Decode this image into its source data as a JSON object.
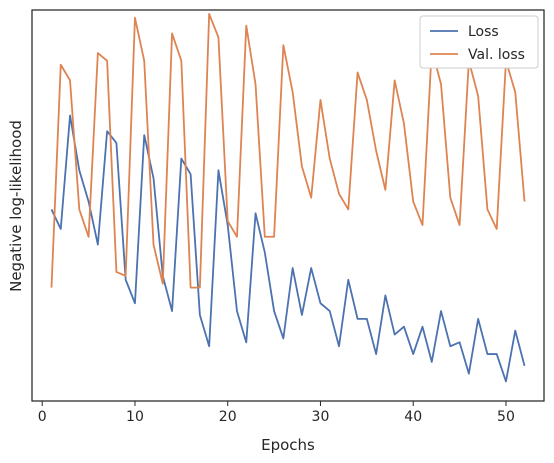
{
  "chart_data": {
    "type": "line",
    "title": "",
    "xlabel": "Epochs",
    "ylabel": "Negative log-likelihood",
    "xlim": [
      -1.1,
      54.1
    ],
    "ylim": [
      0,
      1
    ],
    "xticks": [
      0,
      10,
      20,
      30,
      40,
      50
    ],
    "xtick_labels": [
      "0",
      "10",
      "20",
      "30",
      "40",
      "50"
    ],
    "yticks": [],
    "grid": false,
    "legend": {
      "placement": "top-right"
    },
    "series": [
      {
        "name": "Loss",
        "color": "#4c72b0",
        "x": [
          1,
          2,
          3,
          4,
          5,
          6,
          7,
          8,
          9,
          10,
          11,
          12,
          13,
          14,
          15,
          16,
          17,
          18,
          19,
          20,
          21,
          22,
          23,
          24,
          25,
          26,
          27,
          28,
          29,
          30,
          31,
          32,
          33,
          34,
          35,
          36,
          37,
          38,
          39,
          40,
          41,
          42,
          43,
          44,
          45,
          46,
          47,
          48,
          49,
          50,
          51,
          52
        ],
        "values": [
          0.49,
          0.44,
          0.73,
          0.59,
          0.51,
          0.4,
          0.69,
          0.66,
          0.31,
          0.25,
          0.68,
          0.57,
          0.32,
          0.23,
          0.62,
          0.58,
          0.22,
          0.14,
          0.59,
          0.45,
          0.23,
          0.15,
          0.48,
          0.38,
          0.23,
          0.16,
          0.34,
          0.22,
          0.34,
          0.25,
          0.23,
          0.14,
          0.31,
          0.21,
          0.21,
          0.12,
          0.27,
          0.17,
          0.19,
          0.12,
          0.19,
          0.1,
          0.23,
          0.14,
          0.15,
          0.07,
          0.21,
          0.12,
          0.12,
          0.05,
          0.18,
          0.09
        ]
      },
      {
        "name": "Val. loss",
        "color": "#dd8452",
        "x": [
          1,
          2,
          3,
          4,
          5,
          6,
          7,
          8,
          9,
          10,
          11,
          12,
          13,
          14,
          15,
          16,
          17,
          18,
          19,
          20,
          21,
          22,
          23,
          24,
          25,
          26,
          27,
          28,
          29,
          30,
          31,
          32,
          33,
          34,
          35,
          36,
          37,
          38,
          39,
          40,
          41,
          42,
          43,
          44,
          45,
          46,
          47,
          48,
          49,
          50,
          51,
          52
        ],
        "values": [
          0.29,
          0.86,
          0.82,
          0.49,
          0.42,
          0.89,
          0.87,
          0.33,
          0.32,
          0.98,
          0.87,
          0.4,
          0.3,
          0.94,
          0.87,
          0.29,
          0.29,
          0.99,
          0.93,
          0.46,
          0.42,
          0.96,
          0.81,
          0.42,
          0.42,
          0.91,
          0.79,
          0.6,
          0.52,
          0.77,
          0.62,
          0.53,
          0.49,
          0.84,
          0.77,
          0.64,
          0.54,
          0.82,
          0.71,
          0.51,
          0.45,
          0.9,
          0.81,
          0.52,
          0.45,
          0.87,
          0.78,
          0.49,
          0.44,
          0.87,
          0.79,
          0.51
        ]
      }
    ]
  }
}
